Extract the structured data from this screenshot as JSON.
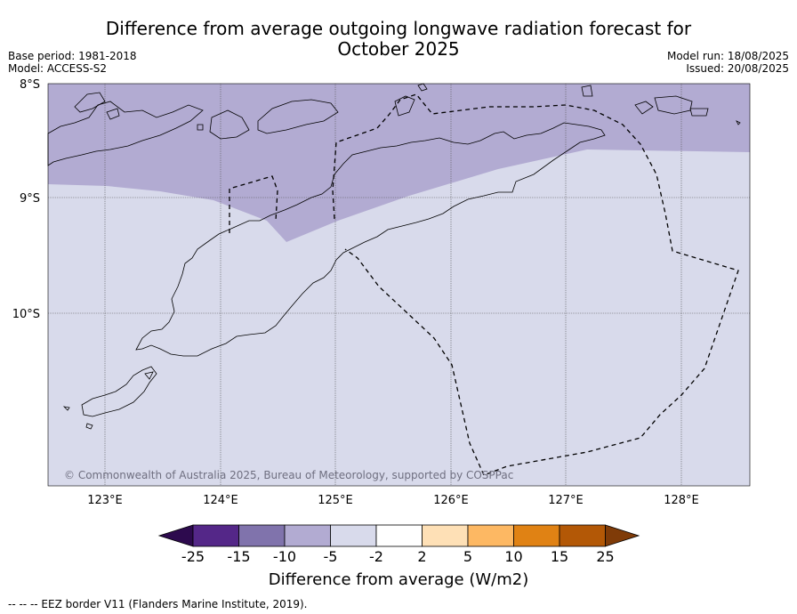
{
  "title": {
    "line1": "Difference from average outgoing longwave radiation forecast for",
    "line2": "October 2025"
  },
  "meta": {
    "base_period": "Base period: 1981-2018",
    "model": "Model: ACCESS-S2",
    "model_run": "Model run: 18/08/2025",
    "issued": "Issued: 20/08/2025"
  },
  "map": {
    "lat_labels": [
      "8°S",
      "9°S",
      "10°S"
    ],
    "lon_labels": [
      "123°E",
      "124°E",
      "125°E",
      "126°E",
      "127°E",
      "128°E"
    ],
    "copyright": "© Commonwealth of Australia 2025, Bureau of Meteorology, supported by COSPPac"
  },
  "colorbar": {
    "ticks": [
      "-25",
      "-15",
      "-10",
      "-5",
      "-2",
      "2",
      "5",
      "10",
      "15",
      "25"
    ],
    "colors": [
      "#2d0a4e",
      "#542788",
      "#8073ac",
      "#b2abd2",
      "#d8daeb",
      "#ffffff",
      "#fee0b6",
      "#fdb863",
      "#e08214",
      "#b35806",
      "#7f3b08"
    ],
    "label": "Difference from average (W/m2)"
  },
  "colors": {
    "anomaly_minus10_to_minus5": "#b2abd2",
    "anomaly_minus5_to_minus2": "#d8daeb"
  },
  "footer": "-- -- -- EEZ border V11 (Flanders Marine Institute, 2019)."
}
